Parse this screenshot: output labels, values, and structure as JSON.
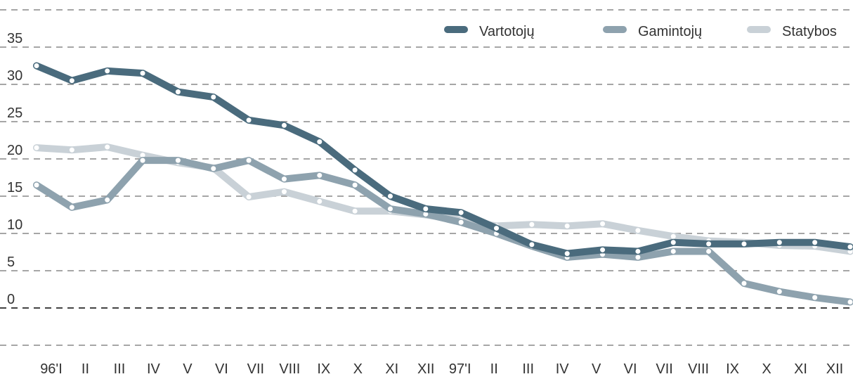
{
  "chart_data": {
    "type": "line",
    "categories": [
      "96'I",
      "II",
      "III",
      "IV",
      "V",
      "VI",
      "VII",
      "VIII",
      "IX",
      "X",
      "XI",
      "XII",
      "97'I",
      "II",
      "III",
      "IV",
      "V",
      "VI",
      "VII",
      "VIII",
      "IX",
      "X",
      "XI",
      "XII"
    ],
    "series": [
      {
        "name": "Vartotojų",
        "color": "#4a6b7d",
        "values": [
          32.5,
          30.5,
          31.8,
          31.5,
          29,
          28.3,
          25.2,
          24.5,
          22.3,
          18.5,
          15,
          13.3,
          12.8,
          10.7,
          8.5,
          7.3,
          7.8,
          7.6,
          8.8,
          8.6,
          8.6,
          8.8,
          8.8,
          8.2
        ]
      },
      {
        "name": "Gamintojų",
        "color": "#8ea2ae",
        "values": [
          16.5,
          13.5,
          14.5,
          19.8,
          19.8,
          18.7,
          19.8,
          17.3,
          17.8,
          16.5,
          13.3,
          12.6,
          11.5,
          10,
          8.3,
          6.8,
          7.2,
          6.8,
          7.6,
          7.6,
          3.3,
          2.2,
          1.4,
          0.8
        ]
      },
      {
        "name": "Statybos",
        "color": "#c9d1d7",
        "values": [
          21.5,
          21.2,
          21.6,
          20.5,
          19.5,
          18.8,
          14.9,
          15.6,
          14.3,
          13,
          13,
          12.5,
          11.8,
          11,
          11.2,
          11,
          11.3,
          10.4,
          9.6,
          9,
          8.8,
          8.4,
          8.3,
          7.6
        ]
      }
    ],
    "ylim": [
      -5,
      40
    ],
    "yticks": [
      0,
      5,
      10,
      15,
      20,
      25,
      30,
      35
    ],
    "grid": true,
    "legend": "top-right"
  }
}
